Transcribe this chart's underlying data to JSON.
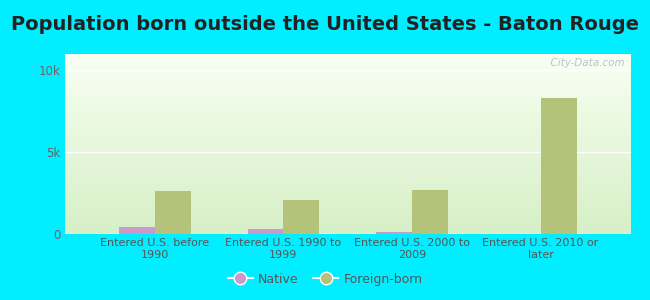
{
  "title": "Population born outside the United States - Baton Rouge",
  "categories": [
    "Entered U.S. before\n1990",
    "Entered U.S. 1990 to\n1999",
    "Entered U.S. 2000 to\n2009",
    "Entered U.S. 2010 or\nlater"
  ],
  "native_values": [
    400,
    330,
    120,
    30
  ],
  "foreign_born_values": [
    2600,
    2100,
    2700,
    8300
  ],
  "native_color": "#cc99cc",
  "foreign_born_color": "#b5c27a",
  "background_color": "#00eeff",
  "ylim": [
    0,
    11000
  ],
  "ytick_labels": [
    "0",
    "5k",
    "10k"
  ],
  "ytick_values": [
    0,
    5000,
    10000
  ],
  "bar_width": 0.28,
  "title_fontsize": 14,
  "watermark": "  City-Data.com",
  "plot_bg_top": "#f7fdf0",
  "plot_bg_bottom": "#d8eecc"
}
